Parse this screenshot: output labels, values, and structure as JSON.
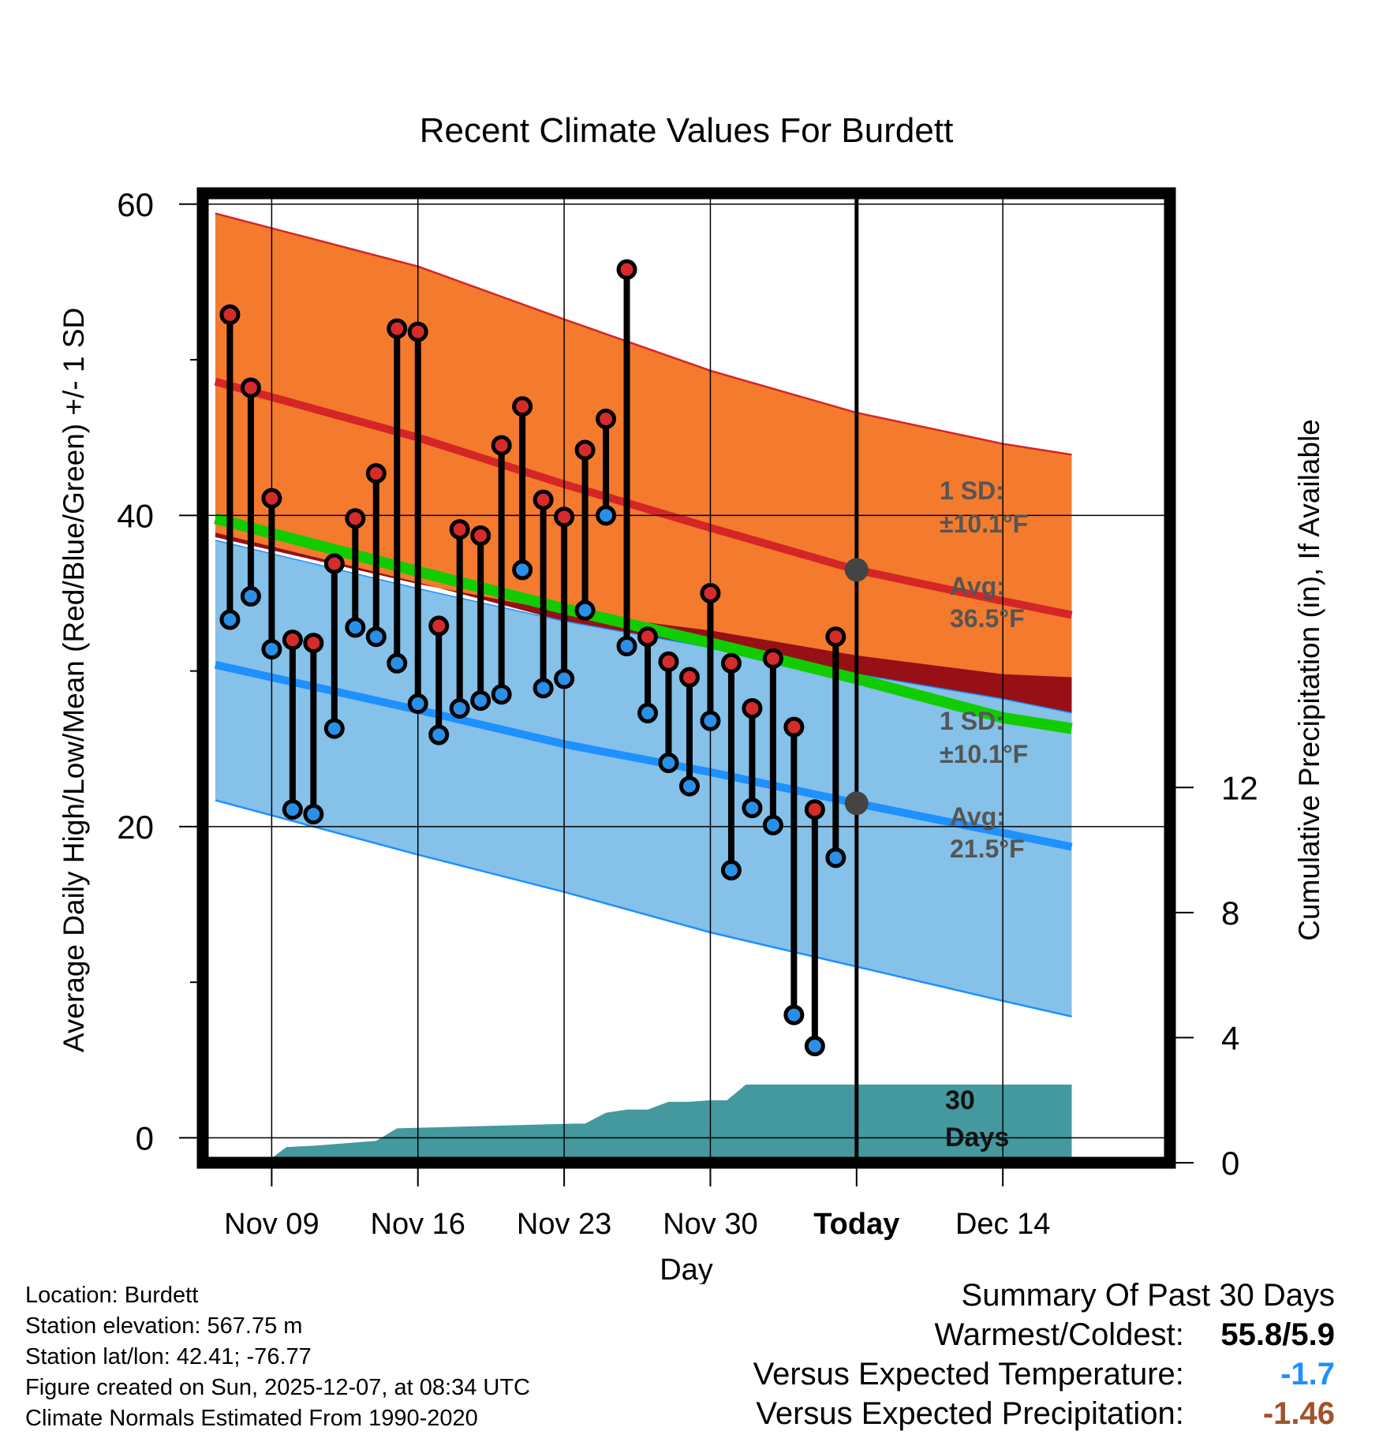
{
  "chart_data": {
    "type": "line",
    "title": "Recent Climate Values For Burdett",
    "xlabel": "Day",
    "ylabel": "Average Daily High/Low/Mean (Red/Blue/Green) +/- 1 SD",
    "y2label": "Cumulative Precipitation (in), If Available",
    "x_range": [
      -3.3,
      43
    ],
    "ylim": [
      -1.6,
      60.7
    ],
    "y2lim": [
      0,
      31
    ],
    "yticks": [
      "0",
      "20",
      "40",
      "60"
    ],
    "y2ticks": [
      "0",
      "4",
      "8",
      "12"
    ],
    "xticks": [
      {
        "day": 0,
        "label": "Nov 09"
      },
      {
        "day": 7,
        "label": "Nov 16"
      },
      {
        "day": 14,
        "label": "Nov 23"
      },
      {
        "day": 21,
        "label": "Nov 30"
      },
      {
        "day": 28,
        "label": "Today"
      },
      {
        "day": 35,
        "label": "Dec 14"
      }
    ],
    "today_day": 28,
    "normals": {
      "days": [
        -2.7,
        7,
        14,
        21,
        28,
        35,
        38.3
      ],
      "high_avg": [
        48.6,
        45.0,
        42.0,
        39.2,
        36.5,
        34.5,
        33.6
      ],
      "high_upper": [
        59.4,
        56.0,
        52.6,
        49.3,
        46.6,
        44.6,
        43.9
      ],
      "high_lower": [
        38.9,
        35.7,
        33.2,
        31.0,
        28.8,
        26.3,
        25.6
      ],
      "mean_avg": [
        39.8,
        36.4,
        34.0,
        31.8,
        29.5,
        27.0,
        26.3
      ],
      "mean_upper": [
        38.6,
        35.6,
        33.8,
        32.6,
        31.0,
        29.8,
        29.6
      ],
      "low_avg": [
        30.4,
        27.5,
        25.3,
        23.5,
        21.5,
        19.6,
        18.7
      ],
      "low_upper": [
        38.4,
        35.3,
        33.2,
        31.5,
        29.8,
        28.2,
        27.3
      ],
      "low_lower": [
        21.7,
        18.2,
        15.8,
        13.2,
        11.0,
        8.8,
        7.8
      ]
    },
    "observations": [
      {
        "day": -2,
        "high": 52.9,
        "low": 33.3
      },
      {
        "day": -1,
        "high": 48.2,
        "low": 34.8
      },
      {
        "day": 0,
        "high": 41.1,
        "low": 31.4
      },
      {
        "day": 1,
        "high": 32.0,
        "low": 21.1
      },
      {
        "day": 2,
        "high": 31.8,
        "low": 20.8
      },
      {
        "day": 3,
        "high": 36.9,
        "low": 26.3
      },
      {
        "day": 4,
        "high": 39.8,
        "low": 32.8
      },
      {
        "day": 5,
        "high": 42.7,
        "low": 32.2
      },
      {
        "day": 6,
        "high": 52.0,
        "low": 30.5
      },
      {
        "day": 7,
        "high": 51.8,
        "low": 27.9
      },
      {
        "day": 8,
        "high": 32.9,
        "low": 25.9
      },
      {
        "day": 9,
        "high": 39.1,
        "low": 27.6
      },
      {
        "day": 10,
        "high": 38.7,
        "low": 28.1
      },
      {
        "day": 11,
        "high": 44.5,
        "low": 28.5
      },
      {
        "day": 12,
        "high": 47.0,
        "low": 36.5
      },
      {
        "day": 13,
        "high": 41.0,
        "low": 28.9
      },
      {
        "day": 14,
        "high": 39.9,
        "low": 29.5
      },
      {
        "day": 15,
        "high": 44.2,
        "low": 33.9
      },
      {
        "day": 16,
        "high": 46.2,
        "low": 40.0
      },
      {
        "day": 17,
        "high": 55.8,
        "low": 31.6
      },
      {
        "day": 18,
        "high": 32.2,
        "low": 27.3
      },
      {
        "day": 19,
        "high": 30.6,
        "low": 24.1
      },
      {
        "day": 20,
        "high": 29.6,
        "low": 22.6
      },
      {
        "day": 21,
        "high": 35.0,
        "low": 26.8
      },
      {
        "day": 22,
        "high": 30.5,
        "low": 17.2
      },
      {
        "day": 23,
        "high": 27.6,
        "low": 21.2
      },
      {
        "day": 24,
        "high": 30.8,
        "low": 20.1
      },
      {
        "day": 25,
        "high": 26.4,
        "low": 7.9
      },
      {
        "day": 26,
        "high": 21.1,
        "low": 5.9
      },
      {
        "day": 27,
        "high": 32.2,
        "low": 18.0
      }
    ],
    "precip_cumulative": {
      "days": [
        -2.7,
        -0.3,
        0.7,
        2.1,
        5.0,
        6.0,
        14.5,
        15.0,
        16.0,
        17.0,
        18.0,
        19.0,
        20.0,
        21.0,
        21.8,
        22.7,
        38.3
      ],
      "values": [
        0,
        0,
        0.5,
        0.55,
        0.7,
        1.1,
        1.25,
        1.25,
        1.6,
        1.7,
        1.7,
        1.95,
        1.95,
        2.0,
        2.0,
        2.5,
        2.5
      ]
    },
    "annotations": {
      "high_sd_title": "1 SD:",
      "high_sd_value": "±10.1°F",
      "high_avg_title": "Avg:",
      "high_avg_value": "36.5°F",
      "low_sd_title": "1 SD:",
      "low_sd_value": "±10.1°F",
      "low_avg_title": "Avg:",
      "low_avg_value": "21.5°F",
      "window_number": "30",
      "window_unit": "Days"
    }
  },
  "footer": {
    "location": "Location: Burdett",
    "elevation": "Station elevation: 567.75 m",
    "latlon": "Station lat/lon: 42.41; -76.77",
    "created": "Figure created on Sun, 2025-12-07, at 08:34 UTC",
    "normals": "Climate Normals Estimated From 1990-2020"
  },
  "summary": {
    "title": "Summary Of Past 30 Days",
    "warmest_coldest_label": "Warmest/Coldest:",
    "warmest_coldest_value": "55.8/5.9",
    "temp_label": "Versus Expected Temperature:",
    "temp_value": "-1.7",
    "precip_label": "Versus Expected Precipitation:",
    "precip_value": "-1.46"
  },
  "colors": {
    "high_band": "#F47A2E",
    "high_line": "#D42626",
    "mean_band": "#971016",
    "mean_line": "#11CC00",
    "low_band": "#85C1E8",
    "low_line": "#1E90FF",
    "precip": "#44999F",
    "high_dot": "#D52B2B",
    "low_dot": "#2A8FE6",
    "annotation": "#555555",
    "temp_anomaly": "#1E90FF",
    "precip_anomaly": "#A0522D"
  }
}
